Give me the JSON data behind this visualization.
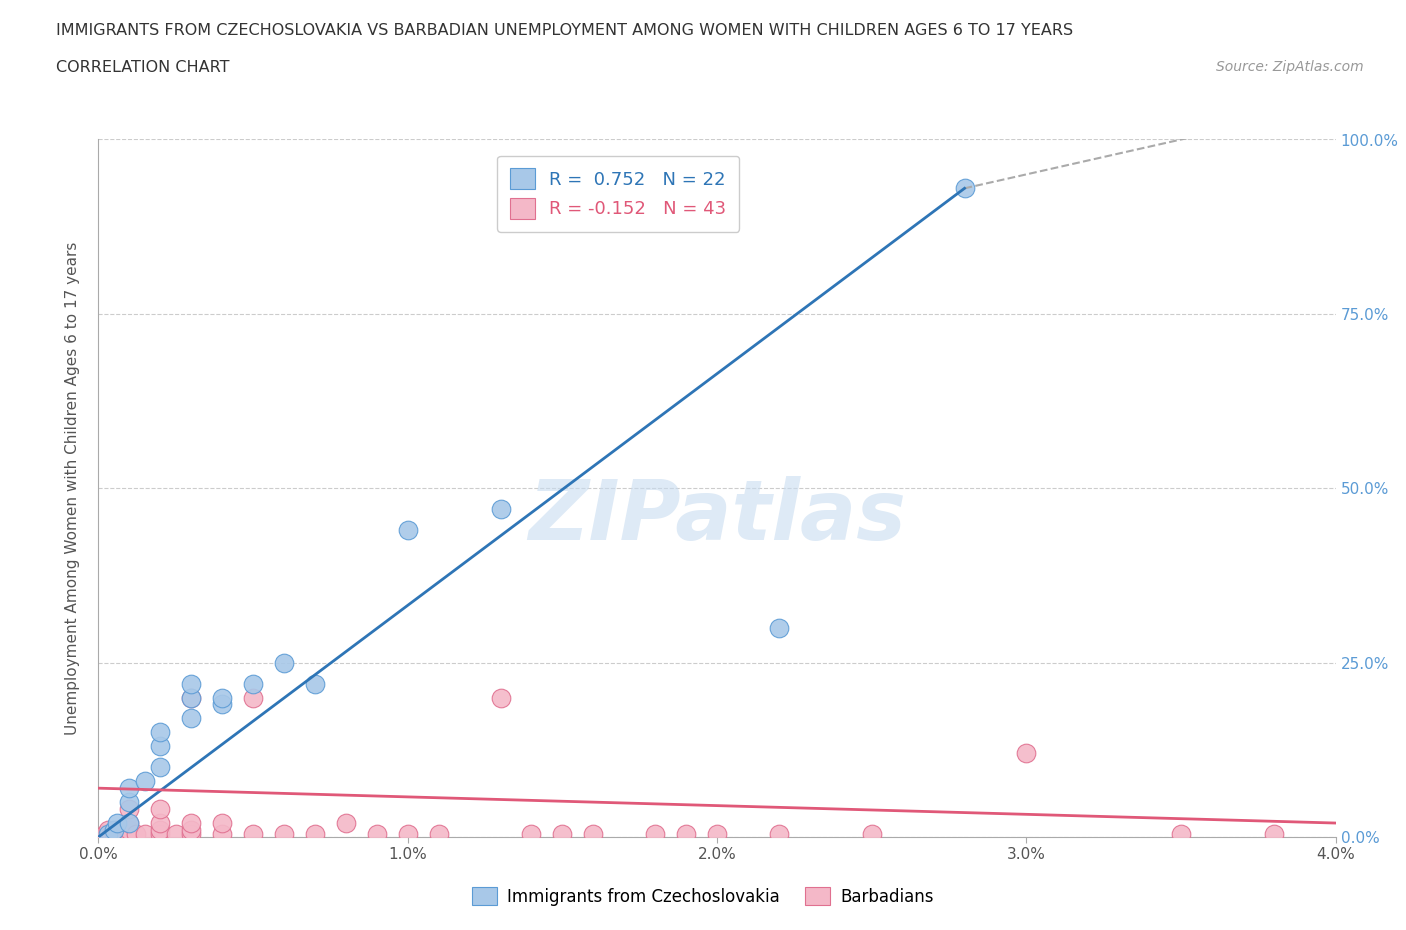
{
  "title_line1": "IMMIGRANTS FROM CZECHOSLOVAKIA VS BARBADIAN UNEMPLOYMENT AMONG WOMEN WITH CHILDREN AGES 6 TO 17 YEARS",
  "title_line2": "CORRELATION CHART",
  "source": "Source: ZipAtlas.com",
  "ylabel": "Unemployment Among Women with Children Ages 6 to 17 years",
  "xlim": [
    0.0,
    0.04
  ],
  "ylim": [
    0.0,
    1.0
  ],
  "xticks": [
    0.0,
    0.01,
    0.02,
    0.03,
    0.04
  ],
  "xtick_labels": [
    "0.0%",
    "1.0%",
    "2.0%",
    "3.0%",
    "4.0%"
  ],
  "yticks": [
    0.0,
    0.25,
    0.5,
    0.75,
    1.0
  ],
  "ytick_labels": [
    "0.0%",
    "25.0%",
    "50.0%",
    "75.0%",
    "100.0%"
  ],
  "blue_color": "#A8C8E8",
  "pink_color": "#F4B8C8",
  "blue_edge_color": "#5B9BD5",
  "pink_edge_color": "#E07090",
  "blue_line_color": "#2E75B6",
  "pink_line_color": "#E05878",
  "blue_label": "Immigrants from Czechoslovakia",
  "pink_label": "Barbadians",
  "blue_R": 0.752,
  "blue_N": 22,
  "pink_R": -0.152,
  "pink_N": 43,
  "blue_scatter": [
    [
      0.0003,
      0.005
    ],
    [
      0.0005,
      0.01
    ],
    [
      0.0006,
      0.02
    ],
    [
      0.001,
      0.02
    ],
    [
      0.001,
      0.05
    ],
    [
      0.001,
      0.07
    ],
    [
      0.0015,
      0.08
    ],
    [
      0.002,
      0.1
    ],
    [
      0.002,
      0.13
    ],
    [
      0.002,
      0.15
    ],
    [
      0.003,
      0.17
    ],
    [
      0.003,
      0.2
    ],
    [
      0.003,
      0.22
    ],
    [
      0.004,
      0.19
    ],
    [
      0.004,
      0.2
    ],
    [
      0.005,
      0.22
    ],
    [
      0.006,
      0.25
    ],
    [
      0.007,
      0.22
    ],
    [
      0.01,
      0.44
    ],
    [
      0.013,
      0.47
    ],
    [
      0.022,
      0.3
    ],
    [
      0.028,
      0.93
    ]
  ],
  "pink_scatter": [
    [
      0.0002,
      0.005
    ],
    [
      0.0003,
      0.01
    ],
    [
      0.0004,
      0.005
    ],
    [
      0.0005,
      0.005
    ],
    [
      0.0006,
      0.01
    ],
    [
      0.0007,
      0.005
    ],
    [
      0.001,
      0.005
    ],
    [
      0.001,
      0.01
    ],
    [
      0.001,
      0.02
    ],
    [
      0.001,
      0.04
    ],
    [
      0.0012,
      0.005
    ],
    [
      0.0015,
      0.005
    ],
    [
      0.002,
      0.005
    ],
    [
      0.002,
      0.01
    ],
    [
      0.002,
      0.02
    ],
    [
      0.002,
      0.04
    ],
    [
      0.0025,
      0.005
    ],
    [
      0.003,
      0.005
    ],
    [
      0.003,
      0.01
    ],
    [
      0.003,
      0.02
    ],
    [
      0.003,
      0.2
    ],
    [
      0.004,
      0.005
    ],
    [
      0.004,
      0.02
    ],
    [
      0.005,
      0.005
    ],
    [
      0.005,
      0.2
    ],
    [
      0.006,
      0.005
    ],
    [
      0.007,
      0.005
    ],
    [
      0.008,
      0.02
    ],
    [
      0.009,
      0.005
    ],
    [
      0.01,
      0.005
    ],
    [
      0.011,
      0.005
    ],
    [
      0.013,
      0.2
    ],
    [
      0.014,
      0.005
    ],
    [
      0.015,
      0.005
    ],
    [
      0.016,
      0.005
    ],
    [
      0.018,
      0.005
    ],
    [
      0.019,
      0.005
    ],
    [
      0.02,
      0.005
    ],
    [
      0.022,
      0.005
    ],
    [
      0.025,
      0.005
    ],
    [
      0.03,
      0.12
    ],
    [
      0.035,
      0.005
    ],
    [
      0.038,
      0.005
    ]
  ],
  "blue_reg_line": [
    [
      0.0,
      0.0
    ],
    [
      0.028,
      0.93
    ]
  ],
  "blue_dash_line": [
    [
      0.028,
      0.93
    ],
    [
      0.04,
      1.05
    ]
  ],
  "pink_reg_line": [
    [
      0.0,
      0.07
    ],
    [
      0.04,
      0.02
    ]
  ],
  "background_color": "#FFFFFF",
  "grid_color": "#CCCCCC",
  "tick_color": "#5B9BD5",
  "watermark_text": "ZIPatlas",
  "watermark_color": "#C8DCF0"
}
